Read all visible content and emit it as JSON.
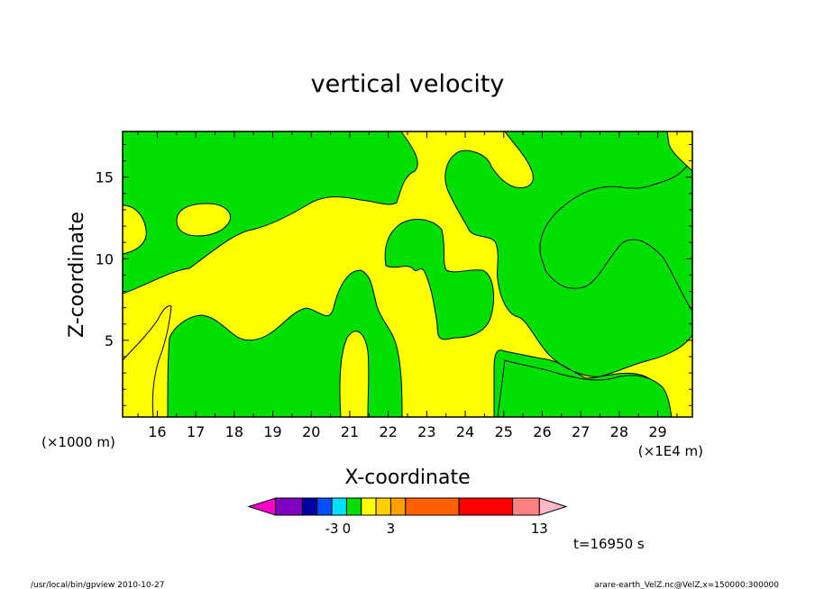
{
  "chart_data": {
    "type": "heatmap",
    "title": "vertical velocity",
    "xlabel": "X-coordinate",
    "ylabel": "Z-coordinate",
    "x_unit_left": "(×1000 m)",
    "x_unit_right": "(×1E4 m)",
    "xlim": [
      15.1,
      29.9
    ],
    "ylim": [
      0.3,
      17.8
    ],
    "x_ticks": [
      16,
      17,
      18,
      19,
      20,
      21,
      22,
      23,
      24,
      25,
      26,
      27,
      28,
      29
    ],
    "x_tick_labels": [
      "16",
      "17",
      "18",
      "19",
      "20",
      "21",
      "22",
      "23",
      "24",
      "25",
      "26",
      "27",
      "28",
      "29"
    ],
    "y_ticks": [
      5,
      10,
      15
    ],
    "y_tick_labels": [
      "5",
      "10",
      "15"
    ],
    "time_label": "t=16950 s",
    "colorbar": {
      "colors": [
        "#ff00cc",
        "#8000c0",
        "#0000a0",
        "#0050ff",
        "#00e0ff",
        "#00e000",
        "#ffff00",
        "#ffd000",
        "#ffa000",
        "#ff6000",
        "#ff0000",
        "#ff8080",
        "#ffb8c8"
      ],
      "widths": [
        1,
        1,
        0.55,
        0.55,
        0.55,
        0.55,
        0.55,
        0.55,
        0.55,
        2,
        2,
        1,
        1
      ],
      "labels": [
        {
          "text": "-3",
          "boundary": 4
        },
        {
          "text": "0",
          "boundary": 5
        },
        {
          "text": "3",
          "boundary": 8
        },
        {
          "text": "13",
          "boundary": 12
        }
      ]
    },
    "field_colors": {
      "negative": "#00e000",
      "positive": "#ffff00"
    },
    "footer_left": "/usr/local/bin/gpview   2010-10-27",
    "footer_right": "arare-earth_VelZ.nc@VelZ,x=150000:300000"
  }
}
